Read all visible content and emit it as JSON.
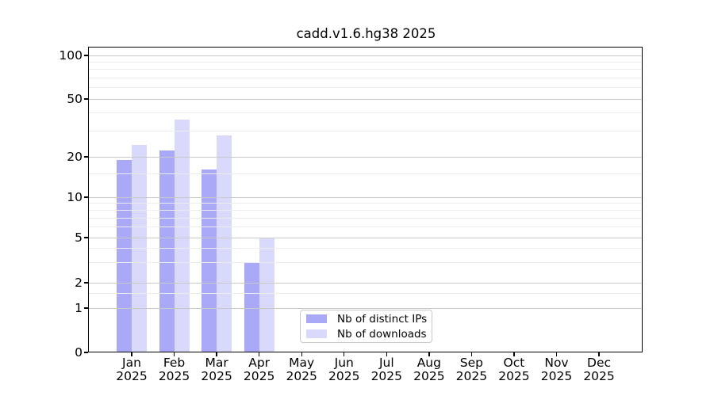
{
  "chart_data": {
    "type": "bar",
    "title": "cadd.v1.6.hg38 2025",
    "year": "2025",
    "categories": [
      "Jan",
      "Feb",
      "Mar",
      "Apr",
      "May",
      "Jun",
      "Jul",
      "Aug",
      "Sep",
      "Oct",
      "Nov",
      "Dec"
    ],
    "series": [
      {
        "name": "Nb of distinct IPs",
        "color": "#a9a9f7",
        "values": [
          19,
          22,
          16,
          3,
          0,
          0,
          0,
          0,
          0,
          0,
          0,
          0
        ]
      },
      {
        "name": "Nb of downloads",
        "color": "#d9d9fb",
        "values": [
          24,
          36,
          28,
          5,
          0,
          0,
          0,
          0,
          0,
          0,
          0,
          0
        ]
      }
    ],
    "y_ticks": [
      0,
      1,
      2,
      5,
      10,
      20,
      50,
      100
    ],
    "y_scale": "symlog",
    "ylim": [
      0,
      110
    ],
    "xlabel": "",
    "ylabel": "",
    "grid": true,
    "legend_position": "inside-bottom-center"
  }
}
